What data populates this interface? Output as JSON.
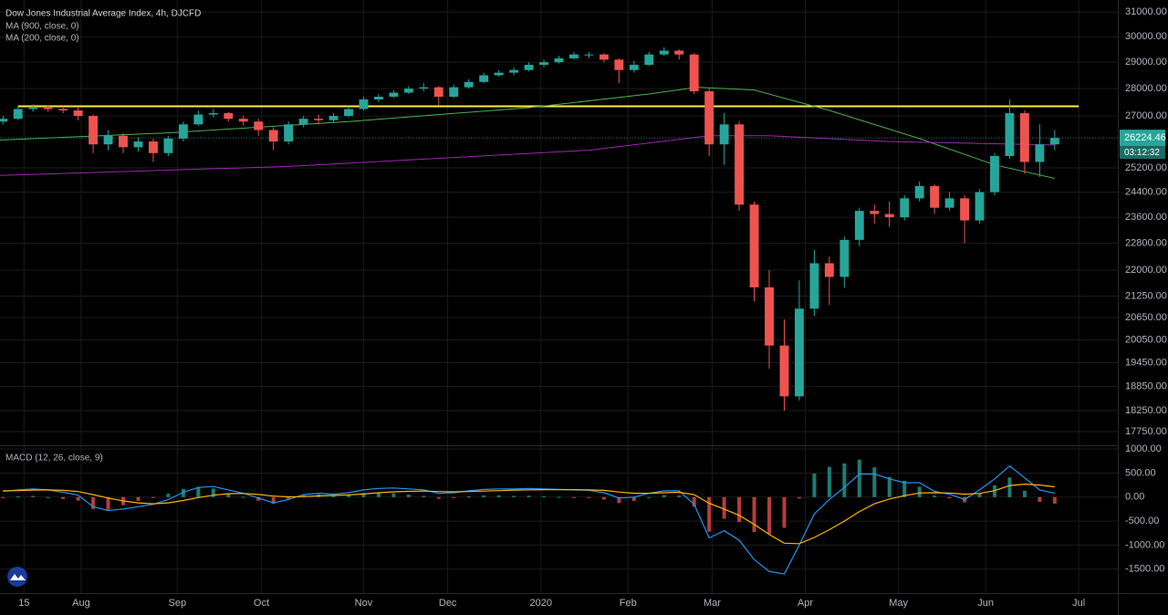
{
  "chart_data": [
    {
      "type": "candlestick",
      "title": "Dow Jones Industrial Average Index, 4h, DJCFD",
      "log": true,
      "grid": true,
      "up_color": "#26a69a",
      "down_color": "#ef5350",
      "xlim": [
        4,
        376
      ],
      "xticks": [
        {
          "value": 12,
          "label": "15"
        },
        {
          "value": 31,
          "label": "Aug"
        },
        {
          "value": 63,
          "label": "Sep"
        },
        {
          "value": 91,
          "label": "Oct"
        },
        {
          "value": 125,
          "label": "Nov"
        },
        {
          "value": 153,
          "label": "Dec"
        },
        {
          "value": 184,
          "label": "2020"
        },
        {
          "value": 213,
          "label": "Feb"
        },
        {
          "value": 241,
          "label": "Mar"
        },
        {
          "value": 272,
          "label": "Apr"
        },
        {
          "value": 303,
          "label": "May"
        },
        {
          "value": 332,
          "label": "Jun"
        },
        {
          "value": 363,
          "label": "Jul"
        }
      ],
      "ylim": [
        17450,
        31500
      ],
      "yticks": [
        {
          "value": 31000,
          "label": "31000.00"
        },
        {
          "value": 30000,
          "label": "30000.00"
        },
        {
          "value": 29000,
          "label": "29000.00"
        },
        {
          "value": 28000,
          "label": "28000.00"
        },
        {
          "value": 27000,
          "label": "27000.00"
        },
        {
          "value": 25200,
          "label": "25200.00"
        },
        {
          "value": 24400,
          "label": "24400.00"
        },
        {
          "value": 23600,
          "label": "23600.00"
        },
        {
          "value": 22800,
          "label": "22800.00"
        },
        {
          "value": 22000,
          "label": "22000.00"
        },
        {
          "value": 21250,
          "label": "21250.00"
        },
        {
          "value": 20650,
          "label": "20650.00"
        },
        {
          "value": 20050,
          "label": "20050.00"
        },
        {
          "value": 19450,
          "label": "19450.00"
        },
        {
          "value": 18850,
          "label": "18850.00"
        },
        {
          "value": 18250,
          "label": "18250.00"
        },
        {
          "value": 17750,
          "label": "17750.00"
        }
      ],
      "x": [
        5,
        10,
        15,
        20,
        25,
        30,
        35,
        40,
        45,
        50,
        55,
        60,
        65,
        70,
        75,
        80,
        85,
        90,
        95,
        100,
        105,
        110,
        115,
        120,
        125,
        130,
        135,
        140,
        145,
        150,
        155,
        160,
        165,
        170,
        175,
        180,
        185,
        190,
        195,
        200,
        205,
        210,
        215,
        220,
        225,
        230,
        235,
        240,
        245,
        250,
        255,
        260,
        265,
        270,
        275,
        280,
        285,
        290,
        295,
        300,
        305,
        310,
        315,
        320,
        325,
        330,
        335,
        340,
        345,
        350,
        355
      ],
      "open": [
        26800,
        26900,
        27250,
        27300,
        27250,
        27200,
        27000,
        26000,
        26300,
        25900,
        26100,
        25700,
        26200,
        26700,
        27050,
        27100,
        26900,
        26800,
        26500,
        26100,
        26700,
        26900,
        26850,
        27000,
        27250,
        27600,
        27700,
        27850,
        28000,
        28050,
        27700,
        28050,
        28250,
        28500,
        28600,
        28700,
        28900,
        29000,
        29150,
        29300,
        29300,
        29100,
        28700,
        28900,
        29300,
        29450,
        29300,
        27900,
        26000,
        26700,
        24000,
        21500,
        19900,
        18600,
        20900,
        22200,
        21800,
        22900,
        23800,
        23700,
        23600,
        24200,
        24600,
        23900,
        24200,
        23500,
        24400,
        25600,
        27100,
        25400,
        26000
      ],
      "high": [
        27000,
        27350,
        27420,
        27380,
        27350,
        27300,
        27050,
        26500,
        26400,
        26250,
        26200,
        26300,
        26800,
        27200,
        27250,
        27150,
        27000,
        26900,
        26600,
        26800,
        27000,
        27050,
        27100,
        27350,
        27700,
        27800,
        27950,
        28100,
        28200,
        28100,
        28150,
        28350,
        28600,
        28700,
        28800,
        29000,
        29100,
        29250,
        29400,
        29400,
        29350,
        29150,
        29050,
        29400,
        29580,
        29500,
        29350,
        28000,
        27100,
        26800,
        24100,
        22000,
        20600,
        21700,
        22600,
        22400,
        23000,
        23900,
        24000,
        24100,
        24300,
        24750,
        24650,
        24400,
        24300,
        24500,
        25700,
        27600,
        27200,
        26700,
        26500
      ],
      "low": [
        26700,
        26850,
        27150,
        27150,
        27100,
        26850,
        25700,
        25800,
        25700,
        25750,
        25400,
        25600,
        26100,
        26650,
        26950,
        26800,
        26650,
        26300,
        25800,
        26000,
        26600,
        26700,
        26750,
        26950,
        27200,
        27500,
        27650,
        27800,
        27900,
        27400,
        27650,
        28000,
        28200,
        28450,
        28500,
        28650,
        28800,
        28950,
        29100,
        29150,
        29000,
        28200,
        28600,
        28850,
        29250,
        29100,
        27800,
        25600,
        25300,
        23800,
        21100,
        19300,
        18250,
        18500,
        20700,
        21000,
        21500,
        22700,
        23400,
        23300,
        23500,
        24100,
        23700,
        23800,
        22800,
        23400,
        24300,
        25500,
        25000,
        24900,
        25800
      ],
      "close": [
        26900,
        27250,
        27300,
        27250,
        27200,
        27000,
        26000,
        26300,
        25900,
        26100,
        25700,
        26200,
        26700,
        27050,
        27100,
        26900,
        26800,
        26500,
        26100,
        26700,
        26900,
        26850,
        27000,
        27250,
        27600,
        27700,
        27850,
        28000,
        28050,
        27700,
        28050,
        28250,
        28500,
        28600,
        28700,
        28900,
        29000,
        29150,
        29300,
        29300,
        29100,
        28700,
        28900,
        29300,
        29450,
        29300,
        27900,
        26000,
        26700,
        24000,
        21500,
        19900,
        18600,
        20900,
        22200,
        21800,
        22900,
        23800,
        23700,
        23600,
        24200,
        24600,
        23900,
        24200,
        23500,
        24400,
        25600,
        27100,
        25400,
        26000,
        26224.46
      ],
      "countdown": "03:12:32",
      "series": [
        {
          "name": "MA (900, close, 0)",
          "color": "#4caf50",
          "x": [
            4,
            60,
            120,
            180,
            220,
            236,
            255,
            280,
            310,
            335,
            355
          ],
          "values": [
            26150,
            26400,
            26800,
            27300,
            27800,
            28050,
            27950,
            27200,
            26200,
            25300,
            24850
          ]
        },
        {
          "name": "MA (200, close, 0)",
          "color": "#9c27b0",
          "x": [
            4,
            100,
            200,
            240,
            260,
            300,
            355
          ],
          "values": [
            24950,
            25250,
            25800,
            26300,
            26300,
            26100,
            25980
          ]
        }
      ],
      "hline": {
        "value": 27350,
        "color": "#ffeb3b"
      }
    },
    {
      "type": "macd",
      "title": "MACD (12, 26, close, 9)",
      "ylim": [
        -2000,
        1060
      ],
      "yticks": [
        {
          "value": 1000,
          "label": "1000.00"
        },
        {
          "value": 500,
          "label": "500.00"
        },
        {
          "value": 0,
          "label": "0.00"
        },
        {
          "value": -500,
          "label": "-500.00"
        },
        {
          "value": -1000,
          "label": "-1000.00"
        },
        {
          "value": -1500,
          "label": "-1500.00"
        }
      ],
      "macd_color": "#2196f3",
      "signal_color": "#ffb300",
      "up_color": "#26a69a",
      "down_color": "#ef5350",
      "x": [
        5,
        10,
        15,
        20,
        25,
        30,
        35,
        40,
        45,
        50,
        55,
        60,
        65,
        70,
        75,
        80,
        85,
        90,
        95,
        100,
        105,
        110,
        115,
        120,
        125,
        130,
        135,
        140,
        145,
        150,
        155,
        160,
        165,
        170,
        175,
        180,
        185,
        190,
        195,
        200,
        205,
        210,
        215,
        220,
        225,
        230,
        235,
        240,
        245,
        250,
        255,
        260,
        265,
        270,
        275,
        280,
        285,
        290,
        295,
        300,
        305,
        310,
        315,
        320,
        325,
        330,
        335,
        340,
        345,
        350,
        355
      ],
      "macd": [
        120,
        150,
        170,
        150,
        100,
        40,
        -200,
        -280,
        -250,
        -200,
        -150,
        -50,
        100,
        200,
        220,
        150,
        80,
        -20,
        -120,
        -50,
        50,
        80,
        60,
        90,
        150,
        180,
        190,
        170,
        150,
        80,
        90,
        130,
        160,
        170,
        170,
        180,
        170,
        160,
        150,
        140,
        90,
        -20,
        0,
        80,
        130,
        130,
        -150,
        -850,
        -700,
        -900,
        -1300,
        -1550,
        -1600,
        -1000,
        -350,
        -50,
        200,
        480,
        480,
        380,
        300,
        300,
        120,
        60,
        -50,
        150,
        380,
        650,
        400,
        150,
        80
      ],
      "signal": [
        130,
        135,
        145,
        150,
        140,
        115,
        50,
        -20,
        -80,
        -120,
        -140,
        -120,
        -70,
        -10,
        40,
        70,
        75,
        55,
        20,
        5,
        10,
        25,
        35,
        45,
        65,
        90,
        110,
        120,
        125,
        115,
        110,
        115,
        125,
        135,
        145,
        150,
        155,
        155,
        155,
        150,
        140,
        105,
        80,
        80,
        90,
        100,
        50,
        -130,
        -250,
        -380,
        -570,
        -780,
        -960,
        -970,
        -840,
        -680,
        -500,
        -300,
        -140,
        -40,
        30,
        85,
        90,
        85,
        60,
        75,
        135,
        240,
        270,
        250,
        215
      ],
      "histogram": [
        -10,
        15,
        25,
        0,
        -40,
        -75,
        -250,
        -260,
        -170,
        -80,
        -10,
        70,
        170,
        210,
        180,
        80,
        5,
        -75,
        -140,
        -55,
        40,
        55,
        25,
        45,
        85,
        90,
        80,
        50,
        25,
        -35,
        -20,
        15,
        35,
        35,
        25,
        30,
        15,
        5,
        -5,
        -10,
        -50,
        -125,
        -80,
        0,
        40,
        30,
        -200,
        -720,
        -450,
        -520,
        -730,
        -770,
        -640,
        -30,
        490,
        630,
        700,
        780,
        620,
        420,
        340,
        215,
        30,
        -25,
        -110,
        75,
        245,
        410,
        130,
        -100,
        -135
      ]
    }
  ]
}
